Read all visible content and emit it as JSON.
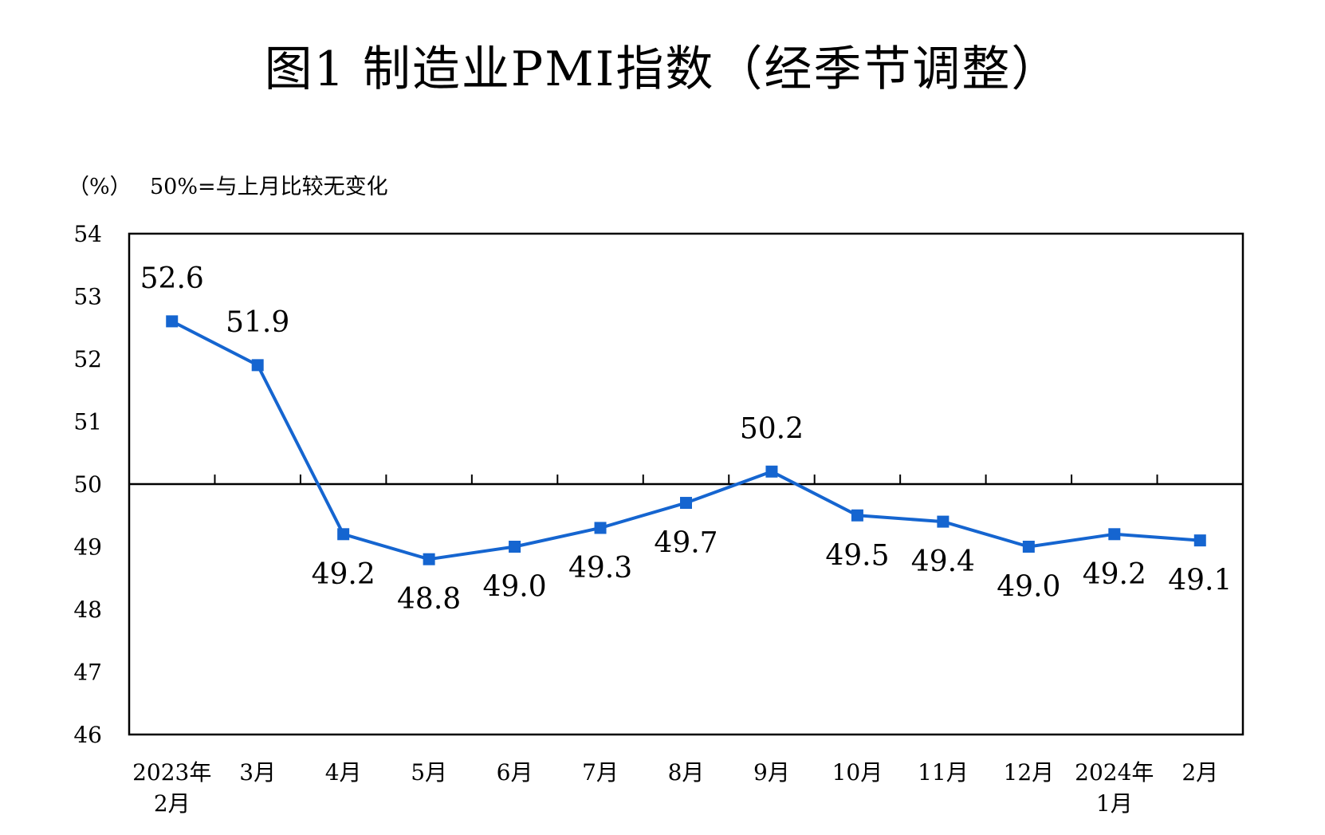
{
  "title": "图1  制造业PMI指数（经季节调整）",
  "unit_label": "（%）",
  "reference_note": "50%=与上月比较无变化",
  "chart_data": {
    "type": "line",
    "title": "图1  制造业PMI指数（经季节调整）",
    "ylabel": "（%）",
    "ylim": [
      46,
      54
    ],
    "yticks": [
      46,
      47,
      48,
      49,
      50,
      51,
      52,
      53,
      54
    ],
    "reference_line": 50,
    "categories": [
      [
        "2023年",
        "2月"
      ],
      [
        "3月"
      ],
      [
        "4月"
      ],
      [
        "5月"
      ],
      [
        "6月"
      ],
      [
        "7月"
      ],
      [
        "8月"
      ],
      [
        "9月"
      ],
      [
        "10月"
      ],
      [
        "11月"
      ],
      [
        "12月"
      ],
      [
        "2024年",
        "1月"
      ],
      [
        "2月"
      ]
    ],
    "series": [
      {
        "values": [
          52.6,
          51.9,
          49.2,
          48.8,
          49.0,
          49.3,
          49.7,
          50.2,
          49.5,
          49.4,
          49.0,
          49.2,
          49.1
        ],
        "labels": [
          "52.6",
          "51.9",
          "49.2",
          "48.8",
          "49.0",
          "49.3",
          "49.7",
          "50.2",
          "49.5",
          "49.4",
          "49.0",
          "49.2",
          "49.1"
        ],
        "color": "#1565d0",
        "marker": "square"
      }
    ],
    "grid": false,
    "legend": "none"
  }
}
